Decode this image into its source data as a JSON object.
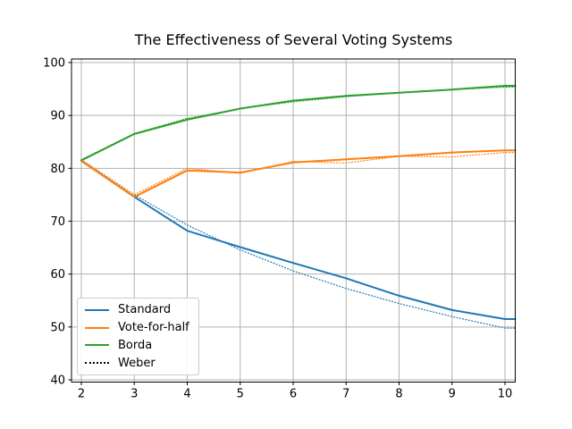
{
  "chart_data": {
    "type": "line",
    "title": "The Effectiveness of Several Voting Systems",
    "xlabel": "",
    "ylabel": "",
    "x": [
      2,
      3,
      4,
      5,
      6,
      7,
      8,
      9,
      10
    ],
    "xticks": [
      2,
      3,
      4,
      5,
      6,
      7,
      8,
      9,
      10
    ],
    "yticks": [
      40,
      50,
      60,
      70,
      80,
      90,
      100
    ],
    "xlim": [
      1.81,
      10.19
    ],
    "ylim": [
      39.6,
      100.7
    ],
    "grid": true,
    "grid_color": "#b0b0b0",
    "axes_color": "#000000",
    "background": "#ffffff",
    "series": [
      {
        "name": "Standard",
        "color": "#1f77b4",
        "style": "solid",
        "values": [
          81.4,
          74.6,
          68.2,
          65.1,
          62.1,
          59.2,
          55.9,
          53.2,
          51.5
        ]
      },
      {
        "name": "Vote-for-half",
        "color": "#ff7f0e",
        "style": "solid",
        "values": [
          81.4,
          74.6,
          79.6,
          79.2,
          81.1,
          81.7,
          82.3,
          83.0,
          83.4
        ]
      },
      {
        "name": "Borda",
        "color": "#2ca02c",
        "style": "solid",
        "values": [
          81.5,
          86.5,
          89.2,
          91.3,
          92.8,
          93.7,
          94.3,
          94.9,
          95.6
        ]
      },
      {
        "name": "Weber (Standard)",
        "color": "#1f77b4",
        "style": "dotted",
        "values": [
          81.65,
          75.0,
          69.28,
          64.55,
          60.61,
          57.28,
          54.43,
          51.96,
          49.79
        ]
      },
      {
        "name": "Weber (Vote-for-half)",
        "color": "#ff7f0e",
        "style": "dotted",
        "values": [
          81.65,
          75.0,
          80.0,
          79.06,
          81.31,
          81.01,
          82.29,
          82.16,
          82.99
        ]
      },
      {
        "name": "Weber (Borda)",
        "color": "#2ca02c",
        "style": "dotted",
        "values": [
          81.65,
          86.6,
          89.44,
          91.29,
          92.58,
          93.54,
          94.28,
          94.87,
          95.35
        ]
      }
    ],
    "legend": {
      "position": "lower-left",
      "entries": [
        {
          "label": "Standard",
          "swatch_color": "#1f77b4",
          "swatch_style": "solid"
        },
        {
          "label": "Vote-for-half",
          "swatch_color": "#ff7f0e",
          "swatch_style": "solid"
        },
        {
          "label": "Borda",
          "swatch_color": "#2ca02c",
          "swatch_style": "solid"
        },
        {
          "label": "Weber",
          "swatch_color": "#000000",
          "swatch_style": "dotted"
        }
      ]
    }
  }
}
